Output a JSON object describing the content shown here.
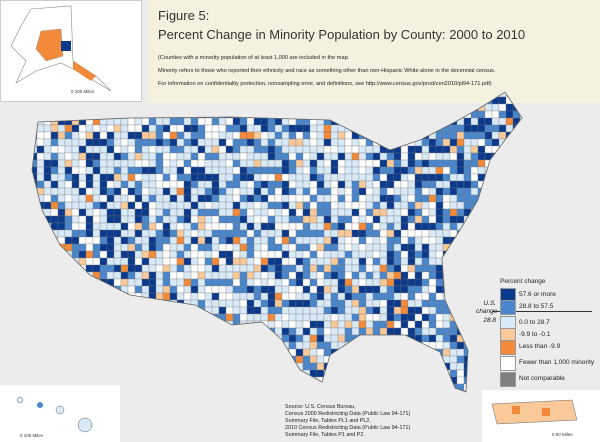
{
  "header": {
    "figure": "Figure 5:",
    "title": "Percent Change in Minority Population by County: 2000 to 2010",
    "notes": [
      "(Counties with a minority population of at least 1,000 are included in the map.",
      "Minority refers to those who reported their ethnicity and race as something other than non-Hispanic White alone in the decennial census.",
      "For information on confidentiality protection, nonsampling error, and definitions, see http://www.census.gov/prod/cen2010/pl94-171.pdf)"
    ]
  },
  "legend": {
    "title": "Percent change",
    "us_change_label": "U.S. change",
    "us_change_value": "28.8",
    "items": [
      {
        "label": "57.6 or more",
        "color": "#0b3a8c"
      },
      {
        "label": "28.8 to 57.5",
        "color": "#4a86cc"
      },
      {
        "label": "0.0 to 28.7",
        "color": "#d8eaf8"
      },
      {
        "label": "-9.9 to -0.1",
        "color": "#f9c99a"
      },
      {
        "label": "Less than -9.9",
        "color": "#f28a3a"
      },
      {
        "label": "Fewer than 1,000 minority",
        "color": "#ffffff"
      },
      {
        "label": "Not comparable",
        "color": "#808080"
      }
    ]
  },
  "source": [
    "Source: U.S. Census Bureau,",
    "Census 2000 Redistricting Data (Public Law 94-171)",
    "Summary File, Tables PL1 and PL2,",
    "2010 Census Redistricting Data (Public Law 94-171)",
    "Summary File, Tables P1 and P2."
  ],
  "scales": {
    "alaska": "0  100 Miles",
    "hawaii": "0  100 Miles",
    "puerto_rico": "0  50 Miles"
  }
}
